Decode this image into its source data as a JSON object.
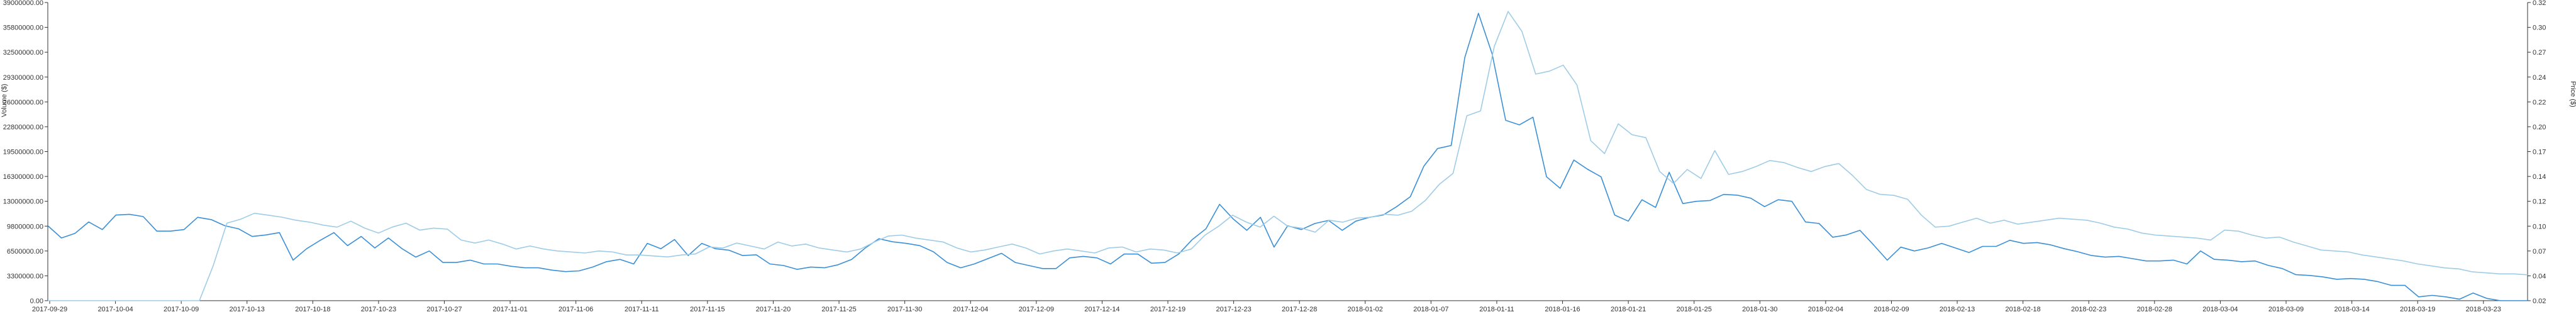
{
  "chart_data": {
    "type": "line",
    "left_axis": {
      "label": "Volume ($)",
      "range": [
        0,
        39000000
      ],
      "tick_labels": [
        "0.00",
        "3300000.00",
        "6500000.00",
        "9800000.00",
        "13000000.00",
        "16300000.00",
        "19500000.00",
        "22800000.00",
        "26000000.00",
        "29300000.00",
        "32500000.00",
        "35800000.00",
        "39000000.00"
      ]
    },
    "right_axis": {
      "label": "Price ($)",
      "range": [
        0.02,
        0.32
      ],
      "tick_labels": [
        "0.02",
        "0.04",
        "0.07",
        "0.10",
        "0.12",
        "0.14",
        "0.17",
        "0.20",
        "0.22",
        "0.24",
        "0.27",
        "0.30",
        "0.32"
      ]
    },
    "x_tick_labels": [
      "2017-09-29",
      "2017-10-04",
      "2017-10-09",
      "2017-10-13",
      "2017-10-18",
      "2017-10-23",
      "2017-10-27",
      "2017-11-01",
      "2017-11-06",
      "2017-11-11",
      "2017-11-15",
      "2017-11-20",
      "2017-11-25",
      "2017-11-30",
      "2017-12-04",
      "2017-12-09",
      "2017-12-14",
      "2017-12-19",
      "2017-12-23",
      "2017-12-28",
      "2018-01-02",
      "2018-01-07",
      "2018-01-11",
      "2018-01-16",
      "2018-01-21",
      "2018-01-25",
      "2018-01-30",
      "2018-02-04",
      "2018-02-09",
      "2018-02-13",
      "2018-02-18",
      "2018-02-23",
      "2018-02-28",
      "2018-03-04",
      "2018-03-09",
      "2018-03-14",
      "2018-03-19",
      "2018-03-23"
    ],
    "grid": false,
    "legend": "none",
    "series": [
      {
        "axis": "left",
        "color": "#3a8fd6",
        "values": [
          9800000,
          8200000,
          8800000,
          10300000,
          9300000,
          11200000,
          11300000,
          11000000,
          9100000,
          9100000,
          9300000,
          10900000,
          10600000,
          9800000,
          9400000,
          8400000,
          8600000,
          8900000,
          5300000,
          6800000,
          7900000,
          8900000,
          7200000,
          8400000,
          6900000,
          8200000,
          6800000,
          5700000,
          6500000,
          5000000,
          5000000,
          5300000,
          4800000,
          4800000,
          4500000,
          4300000,
          4300000,
          4000000,
          3800000,
          3900000,
          4400000,
          5100000,
          5400000,
          4800000,
          7500000,
          6800000,
          8000000,
          5900000,
          7500000,
          6800000,
          6600000,
          5900000,
          6000000,
          4800000,
          4600000,
          4100000,
          4400000,
          4300000,
          4700000,
          5400000,
          6900000,
          8100000,
          7700000,
          7500000,
          7200000,
          6400000,
          5000000,
          4300000,
          4800000,
          5500000,
          6200000,
          5000000,
          4600000,
          4200000,
          4200000,
          5600000,
          5800000,
          5600000,
          4800000,
          6100000,
          6100000,
          4900000,
          5000000,
          6100000,
          8000000,
          9400000,
          12600000,
          10700000,
          9200000,
          10900000,
          7000000,
          9800000,
          9300000,
          10100000,
          10500000,
          9200000,
          10400000,
          10900000,
          11200000,
          12300000,
          13600000,
          17600000,
          19900000,
          20300000,
          31800000,
          37600000,
          32300000,
          23600000,
          23000000,
          24000000,
          16200000,
          14700000,
          18400000,
          17200000,
          16200000,
          11200000,
          10400000,
          13200000,
          12200000,
          16800000,
          12700000,
          13000000,
          13100000,
          13900000,
          13800000,
          13400000,
          12300000,
          13200000,
          13000000,
          10300000,
          10100000,
          8300000,
          8600000,
          9200000,
          7300000,
          5300000,
          7000000,
          6500000,
          6900000,
          7500000,
          6900000,
          6300000,
          7100000,
          7100000,
          7900000,
          7500000,
          7600000,
          7300000,
          6800000,
          6400000,
          5900000,
          5700000,
          5800000,
          5500000,
          5200000,
          5200000,
          5300000,
          4800000,
          6500000,
          5400000,
          5300000,
          5100000,
          5200000,
          4600000,
          4200000,
          3400000,
          3300000,
          3100000,
          2800000,
          2900000,
          2800000,
          2500000,
          2000000,
          2000000,
          500000,
          700000,
          500000,
          200000,
          1000000,
          300000,
          0,
          0,
          0
        ]
      },
      {
        "axis": "right",
        "color": "#9ecbe6",
        "values": [
          0.02,
          0.02,
          0.02,
          0.02,
          0.02,
          0.02,
          0.02,
          0.02,
          0.02,
          0.02,
          0.02,
          0.02,
          0.055,
          0.098,
          0.102,
          0.108,
          0.106,
          0.104,
          0.101,
          0.099,
          0.096,
          0.094,
          0.1,
          0.093,
          0.088,
          0.094,
          0.098,
          0.091,
          0.093,
          0.092,
          0.081,
          0.078,
          0.081,
          0.077,
          0.072,
          0.075,
          0.072,
          0.07,
          0.069,
          0.068,
          0.07,
          0.069,
          0.066,
          0.066,
          0.065,
          0.064,
          0.066,
          0.067,
          0.074,
          0.073,
          0.078,
          0.075,
          0.072,
          0.079,
          0.075,
          0.077,
          0.073,
          0.071,
          0.069,
          0.072,
          0.079,
          0.085,
          0.086,
          0.083,
          0.081,
          0.079,
          0.073,
          0.069,
          0.071,
          0.074,
          0.077,
          0.073,
          0.067,
          0.07,
          0.072,
          0.07,
          0.068,
          0.073,
          0.074,
          0.069,
          0.072,
          0.071,
          0.068,
          0.072,
          0.086,
          0.095,
          0.106,
          0.099,
          0.094,
          0.105,
          0.095,
          0.093,
          0.089,
          0.101,
          0.099,
          0.103,
          0.104,
          0.107,
          0.106,
          0.11,
          0.121,
          0.137,
          0.148,
          0.206,
          0.211,
          0.276,
          0.311,
          0.291,
          0.248,
          0.251,
          0.257,
          0.237,
          0.181,
          0.168,
          0.198,
          0.187,
          0.184,
          0.15,
          0.138,
          0.152,
          0.143,
          0.171,
          0.147,
          0.15,
          0.155,
          0.161,
          0.159,
          0.154,
          0.15,
          0.155,
          0.158,
          0.146,
          0.132,
          0.127,
          0.126,
          0.122,
          0.106,
          0.094,
          0.095,
          0.099,
          0.103,
          0.098,
          0.101,
          0.097,
          0.099,
          0.101,
          0.103,
          0.102,
          0.101,
          0.098,
          0.094,
          0.092,
          0.088,
          0.086,
          0.085,
          0.084,
          0.083,
          0.081,
          0.091,
          0.09,
          0.086,
          0.083,
          0.084,
          0.079,
          0.075,
          0.071,
          0.07,
          0.069,
          0.066,
          0.064,
          0.062,
          0.06,
          0.057,
          0.055,
          0.053,
          0.052,
          0.049,
          0.048,
          0.047,
          0.047,
          0.046
        ]
      }
    ]
  }
}
